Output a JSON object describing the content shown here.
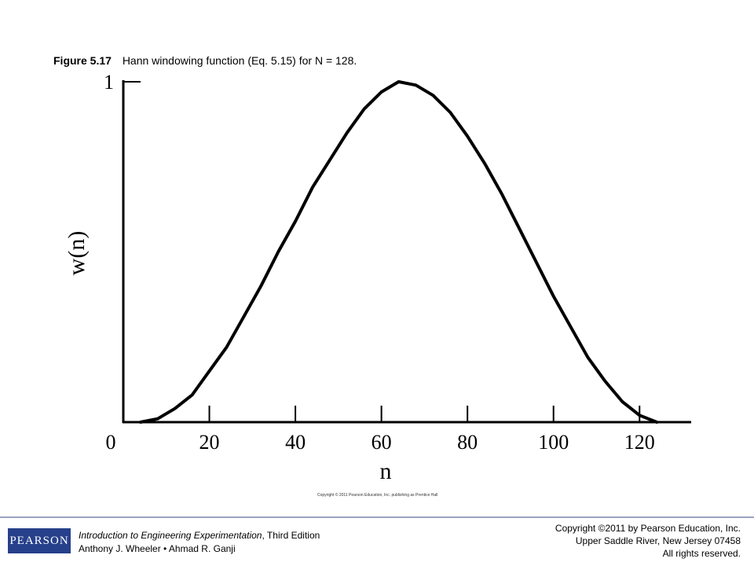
{
  "caption": {
    "figure_label": "Figure 5.17",
    "text": "Hann windowing function (Eq. 5.15) for N = 128."
  },
  "chart_data": {
    "type": "line",
    "title": "",
    "xlabel": "n",
    "ylabel": "w(n)",
    "xlim": [
      0,
      132
    ],
    "ylim": [
      0,
      1
    ],
    "x_ticks": [
      0,
      20,
      40,
      60,
      80,
      100,
      120
    ],
    "y_ticks": [
      1
    ],
    "grid": false,
    "series": [
      {
        "x": [
          4,
          8,
          12,
          16,
          20,
          24,
          28,
          32,
          36,
          40,
          44,
          48,
          52,
          56,
          60,
          64,
          68,
          72,
          76,
          80,
          84,
          88,
          92,
          96,
          100,
          104,
          108,
          112,
          116,
          120,
          124
        ],
        "y": [
          0.0,
          0.01,
          0.04,
          0.08,
          0.15,
          0.22,
          0.31,
          0.4,
          0.5,
          0.59,
          0.69,
          0.77,
          0.85,
          0.92,
          0.97,
          1.0,
          0.99,
          0.96,
          0.91,
          0.84,
          0.76,
          0.67,
          0.57,
          0.47,
          0.37,
          0.28,
          0.19,
          0.12,
          0.06,
          0.02,
          0.0
        ]
      }
    ]
  },
  "chart_copyright": "Copyright © 2011 Pearson Education, Inc. publishing as Prentice Hall",
  "footer": {
    "logo_text": "PEARSON",
    "book_title": "Introduction to Engineering Experimentation",
    "edition": ", Third Edition",
    "authors": "Anthony J. Wheeler • Ahmad R. Ganji",
    "copyright_line1": "Copyright ©2011 by Pearson Education, Inc.",
    "copyright_line2": "Upper Saddle River, New Jersey 07458",
    "copyright_line3": "All rights reserved."
  }
}
